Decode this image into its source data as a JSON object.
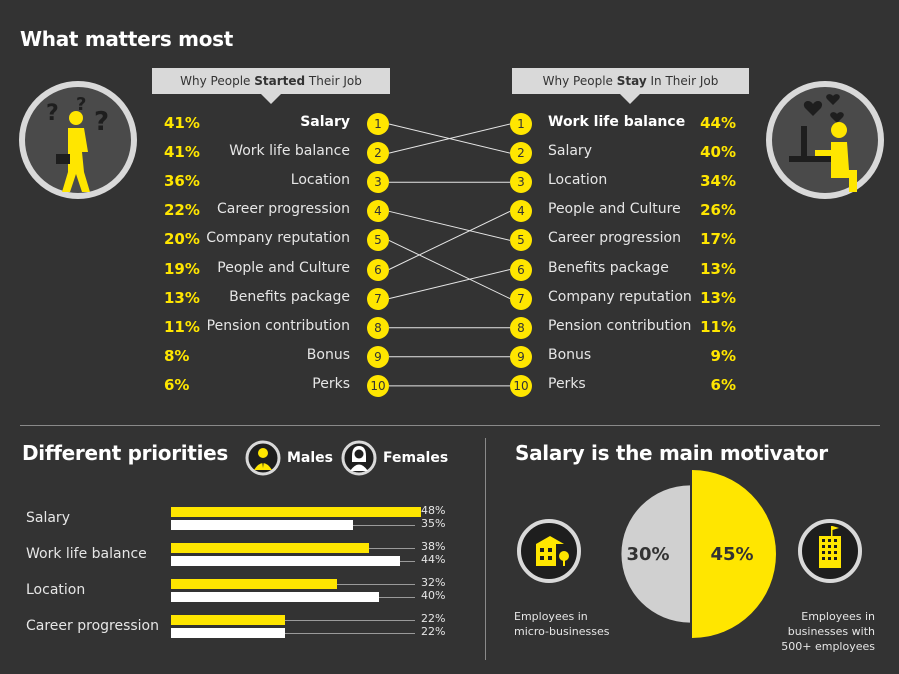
{
  "title": "What matters most",
  "started": {
    "banner_pre": "Why People ",
    "banner_bold": "Started",
    "banner_post": " Their Job",
    "items": [
      {
        "rank": "1",
        "label": "Salary",
        "pct": "41%",
        "bold": true
      },
      {
        "rank": "2",
        "label": "Work life balance",
        "pct": "41%"
      },
      {
        "rank": "3",
        "label": "Location",
        "pct": "36%"
      },
      {
        "rank": "4",
        "label": "Career progression",
        "pct": "22%"
      },
      {
        "rank": "5",
        "label": "Company reputation",
        "pct": "20%"
      },
      {
        "rank": "6",
        "label": "People and Culture",
        "pct": "19%"
      },
      {
        "rank": "7",
        "label": "Benefits package",
        "pct": "13%"
      },
      {
        "rank": "8",
        "label": "Pension contribution",
        "pct": "11%"
      },
      {
        "rank": "9",
        "label": "Bonus",
        "pct": "8%"
      },
      {
        "rank": "10",
        "label": "Perks",
        "pct": "6%"
      }
    ]
  },
  "stay": {
    "banner_pre": "Why People ",
    "banner_bold": "Stay",
    "banner_post": " In Their Job",
    "items": [
      {
        "rank": "1",
        "label": "Work life balance",
        "pct": "44%",
        "bold": true
      },
      {
        "rank": "2",
        "label": "Salary",
        "pct": "40%"
      },
      {
        "rank": "3",
        "label": "Location",
        "pct": "34%"
      },
      {
        "rank": "4",
        "label": "People and Culture",
        "pct": "26%"
      },
      {
        "rank": "5",
        "label": "Career progression",
        "pct": "17%"
      },
      {
        "rank": "6",
        "label": "Benefits package",
        "pct": "13%"
      },
      {
        "rank": "7",
        "label": "Company reputation",
        "pct": "13%"
      },
      {
        "rank": "8",
        "label": "Pension contribution",
        "pct": "11%"
      },
      {
        "rank": "9",
        "label": "Bonus",
        "pct": "9%"
      },
      {
        "rank": "10",
        "label": "Perks",
        "pct": "6%"
      }
    ]
  },
  "priorities": {
    "title": "Different priorities",
    "legend_males": "Males",
    "legend_females": "Females"
  },
  "motivator": {
    "title": "Salary is the main motivator",
    "left_caption_1": "Employees in",
    "left_caption_2": "micro-businesses",
    "right_caption_1": "Employees in",
    "right_caption_2": "businesses with",
    "right_caption_3": "500+ employees"
  },
  "colors": {
    "yellow": "#ffe600",
    "white": "#ffffff",
    "grey": "#d0d0d0",
    "bg": "#333333"
  },
  "chart_data": [
    {
      "type": "table",
      "title": "What matters most",
      "columns": [
        "Why People Started Their Job",
        "Why People Stay In Their Job"
      ],
      "started": [
        [
          "Salary",
          41
        ],
        [
          "Work life balance",
          41
        ],
        [
          "Location",
          36
        ],
        [
          "Career progression",
          22
        ],
        [
          "Company reputation",
          20
        ],
        [
          "People and Culture",
          19
        ],
        [
          "Benefits package",
          13
        ],
        [
          "Pension contribution",
          11
        ],
        [
          "Bonus",
          8
        ],
        [
          "Perks",
          6
        ]
      ],
      "stay": [
        [
          "Work life balance",
          44
        ],
        [
          "Salary",
          40
        ],
        [
          "Location",
          34
        ],
        [
          "People and Culture",
          26
        ],
        [
          "Career progression",
          17
        ],
        [
          "Benefits package",
          13
        ],
        [
          "Company reputation",
          13
        ],
        [
          "Pension contribution",
          11
        ],
        [
          "Bonus",
          9
        ],
        [
          "Perks",
          6
        ]
      ],
      "links": [
        [
          1,
          2
        ],
        [
          2,
          1
        ],
        [
          3,
          3
        ],
        [
          4,
          5
        ],
        [
          5,
          7
        ],
        [
          6,
          4
        ],
        [
          7,
          6
        ],
        [
          8,
          8
        ],
        [
          9,
          9
        ],
        [
          10,
          10
        ]
      ]
    },
    {
      "type": "bar",
      "title": "Different priorities",
      "categories": [
        "Salary",
        "Work life balance",
        "Location",
        "Career progression"
      ],
      "series": [
        {
          "name": "Males",
          "values": [
            48,
            38,
            32,
            22
          ],
          "labels": [
            "48%",
            "38%",
            "32%",
            "22%"
          ]
        },
        {
          "name": "Females",
          "values": [
            35,
            44,
            40,
            22
          ],
          "labels": [
            "35%",
            "44%",
            "40%",
            "22%"
          ]
        }
      ],
      "xlim": [
        0,
        60
      ]
    },
    {
      "type": "pie",
      "title": "Salary is the main motivator",
      "values": [
        30,
        45
      ],
      "labels": [
        "30%",
        "45%"
      ],
      "categories": [
        "Employees in micro-businesses",
        "Employees in businesses with 500+ employees"
      ]
    }
  ]
}
